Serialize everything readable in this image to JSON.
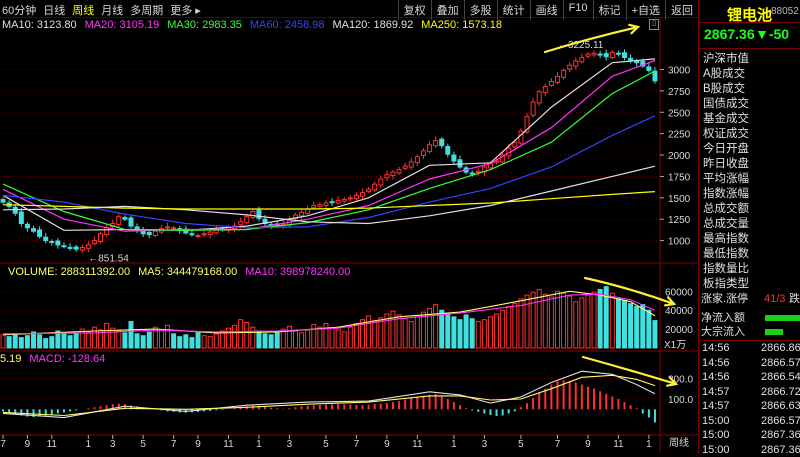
{
  "toolbar": {
    "periods": [
      "60分钟",
      "日线",
      "周线",
      "月线",
      "多周期",
      "更多 ▸"
    ],
    "active_period": 2,
    "tools": [
      "复权",
      "叠加",
      "多股",
      "统计",
      "画线",
      "F10",
      "标记",
      "+自选",
      "返回"
    ]
  },
  "ma_legend": [
    {
      "label": "MA10: 3123.80",
      "color": "#e0e0e0"
    },
    {
      "label": "MA20: 3105.19",
      "color": "#ff33ff"
    },
    {
      "label": "MA30: 2983.35",
      "color": "#33ff33"
    },
    {
      "label": "MA60: 2458.98",
      "color": "#3344ff"
    },
    {
      "label": "MA120: 1869.92",
      "color": "#e0e0e0"
    },
    {
      "label": "MA250: 1573.18",
      "color": "#ffff00"
    }
  ],
  "volume_legend": [
    {
      "label": "VOLUME: 288311392.00",
      "color": "#ffff66"
    },
    {
      "label": "MA5: 344479168.00",
      "color": "#ffff66"
    },
    {
      "label": "MA10: 398978240.00",
      "color": "#ff33ff"
    }
  ],
  "macd_legend": [
    {
      "label": "5.19",
      "color": "#ffff66"
    },
    {
      "label": "MACD: -128.64",
      "color": "#ff33ff"
    }
  ],
  "chart_data": [
    {
      "type": "line",
      "name": "price_candles",
      "ylim": [
        750,
        3450
      ],
      "yticks": [
        1000,
        1250,
        1500,
        1750,
        2000,
        2250,
        2500,
        2750,
        3000
      ],
      "annotations": [
        {
          "text": "851.54",
          "x": 13,
          "y": 851.54
        },
        {
          "text": "3225.11",
          "x": 96,
          "y": 3225.11
        }
      ],
      "x": [
        0,
        1,
        2,
        3,
        4,
        5,
        6,
        7,
        8,
        9,
        10,
        11,
        12,
        13,
        14,
        15,
        16,
        17,
        18,
        19,
        20,
        21,
        22,
        23,
        24,
        25,
        26,
        27,
        28,
        29,
        30,
        31,
        32,
        33,
        34,
        35,
        36,
        37,
        38,
        39,
        40,
        41,
        42,
        43,
        44,
        45,
        46,
        47,
        48,
        49,
        50,
        51,
        52,
        53,
        54,
        55,
        56,
        57,
        58,
        59,
        60,
        61,
        62,
        63,
        64,
        65,
        66,
        67,
        68,
        69,
        70,
        71,
        72,
        73,
        74,
        75,
        76,
        77,
        78,
        79,
        80,
        81,
        82,
        83,
        84,
        85,
        86,
        87,
        88,
        89,
        90,
        91,
        92,
        93,
        94,
        95,
        96,
        97,
        98,
        99,
        100,
        101,
        102,
        103,
        104,
        105,
        106,
        107
      ],
      "close": [
        1450,
        1400,
        1320,
        1200,
        1150,
        1110,
        1050,
        1000,
        980,
        950,
        930,
        910,
        900,
        920,
        950,
        1000,
        1080,
        1150,
        1200,
        1280,
        1250,
        1170,
        1120,
        1080,
        1070,
        1110,
        1140,
        1160,
        1150,
        1120,
        1090,
        1070,
        1060,
        1080,
        1100,
        1120,
        1130,
        1150,
        1170,
        1220,
        1280,
        1340,
        1260,
        1200,
        1180,
        1170,
        1190,
        1240,
        1300,
        1330,
        1370,
        1410,
        1420,
        1440,
        1450,
        1470,
        1480,
        1500,
        1530,
        1560,
        1600,
        1660,
        1720,
        1770,
        1800,
        1830,
        1870,
        1920,
        1980,
        2050,
        2120,
        2170,
        2110,
        2010,
        1930,
        1860,
        1800,
        1780,
        1810,
        1860,
        1900,
        1930,
        2000,
        2080,
        2150,
        2280,
        2450,
        2620,
        2740,
        2800,
        2860,
        2920,
        2990,
        3050,
        3100,
        3140,
        3180,
        3190,
        3170,
        3150,
        3200,
        3180,
        3140,
        3110,
        3080,
        3040,
        2990,
        2867
      ],
      "ma_series": [
        {
          "name": "MA10",
          "color": "#e0e0e0",
          "points": [
            [
              0,
              1530
            ],
            [
              10,
              1120
            ],
            [
              20,
              1130
            ],
            [
              30,
              1120
            ],
            [
              40,
              1170
            ],
            [
              50,
              1290
            ],
            [
              60,
              1500
            ],
            [
              70,
              1880
            ],
            [
              80,
              1910
            ],
            [
              90,
              2560
            ],
            [
              100,
              3080
            ],
            [
              107,
              3124
            ]
          ]
        },
        {
          "name": "MA20",
          "color": "#ff33ff",
          "points": [
            [
              0,
              1600
            ],
            [
              10,
              1250
            ],
            [
              20,
              1110
            ],
            [
              30,
              1130
            ],
            [
              40,
              1130
            ],
            [
              50,
              1250
            ],
            [
              60,
              1410
            ],
            [
              70,
              1720
            ],
            [
              80,
              1900
            ],
            [
              90,
              2320
            ],
            [
              100,
              2920
            ],
            [
              107,
              3105
            ]
          ]
        },
        {
          "name": "MA30",
          "color": "#33ff33",
          "points": [
            [
              0,
              1660
            ],
            [
              10,
              1340
            ],
            [
              20,
              1130
            ],
            [
              30,
              1120
            ],
            [
              40,
              1130
            ],
            [
              50,
              1210
            ],
            [
              60,
              1360
            ],
            [
              70,
              1610
            ],
            [
              80,
              1830
            ],
            [
              90,
              2150
            ],
            [
              100,
              2720
            ],
            [
              107,
              2983
            ]
          ]
        },
        {
          "name": "MA60",
          "color": "#3344ff",
          "points": [
            [
              0,
              1530
            ],
            [
              10,
              1450
            ],
            [
              20,
              1310
            ],
            [
              30,
              1200
            ],
            [
              40,
              1150
            ],
            [
              50,
              1160
            ],
            [
              60,
              1270
            ],
            [
              70,
              1450
            ],
            [
              80,
              1610
            ],
            [
              90,
              1860
            ],
            [
              100,
              2230
            ],
            [
              107,
              2459
            ]
          ]
        },
        {
          "name": "MA120",
          "color": "#e0e0e0",
          "points": [
            [
              0,
              1360
            ],
            [
              10,
              1370
            ],
            [
              20,
              1400
            ],
            [
              30,
              1360
            ],
            [
              40,
              1300
            ],
            [
              50,
              1220
            ],
            [
              60,
              1200
            ],
            [
              70,
              1290
            ],
            [
              80,
              1410
            ],
            [
              90,
              1580
            ],
            [
              100,
              1750
            ],
            [
              107,
              1870
            ]
          ]
        },
        {
          "name": "MA250",
          "color": "#ffff00",
          "points": [
            [
              0,
              1420
            ],
            [
              10,
              1400
            ],
            [
              20,
              1380
            ],
            [
              30,
              1370
            ],
            [
              40,
              1370
            ],
            [
              50,
              1370
            ],
            [
              60,
              1380
            ],
            [
              70,
              1410
            ],
            [
              80,
              1440
            ],
            [
              90,
              1490
            ],
            [
              100,
              1540
            ],
            [
              107,
              1573
            ]
          ]
        }
      ]
    },
    {
      "type": "bar",
      "name": "volume",
      "ylim": [
        0,
        72000
      ],
      "yticks": [
        20000,
        40000,
        60000
      ],
      "unit_label": "X1万",
      "values": [
        14000,
        12000,
        15000,
        11000,
        13000,
        17000,
        14000,
        10000,
        12000,
        18000,
        15000,
        13000,
        16000,
        20000,
        17000,
        22000,
        19000,
        26000,
        21000,
        18000,
        16000,
        28000,
        15000,
        13000,
        17000,
        22000,
        19000,
        24000,
        15000,
        12000,
        14000,
        11000,
        16000,
        13000,
        12000,
        15000,
        18000,
        21000,
        24000,
        30000,
        27000,
        22000,
        18000,
        15000,
        14000,
        16000,
        20000,
        23000,
        18000,
        16000,
        19000,
        25000,
        22000,
        26000,
        21000,
        19000,
        17000,
        22000,
        26000,
        30000,
        34000,
        29000,
        32000,
        36000,
        39000,
        35000,
        31000,
        28000,
        33000,
        38000,
        42000,
        46000,
        40000,
        37000,
        33000,
        30000,
        35000,
        31000,
        28000,
        30000,
        33000,
        36000,
        40000,
        44000,
        47000,
        52000,
        56000,
        59000,
        62000,
        57000,
        54000,
        60000,
        58000,
        55000,
        49000,
        53000,
        56000,
        59000,
        62000,
        65000,
        58000,
        52000,
        50000,
        47000,
        44000,
        46000,
        40000,
        29000
      ],
      "ma5": [
        [
          0,
          14000
        ],
        [
          15,
          18000
        ],
        [
          25,
          20000
        ],
        [
          35,
          16000
        ],
        [
          45,
          17000
        ],
        [
          55,
          22000
        ],
        [
          65,
          33000
        ],
        [
          75,
          38000
        ],
        [
          85,
          50000
        ],
        [
          93,
          60000
        ],
        [
          98,
          56000
        ],
        [
          103,
          49000
        ],
        [
          107,
          34000
        ]
      ],
      "ma10": [
        [
          0,
          15000
        ],
        [
          15,
          16000
        ],
        [
          25,
          19000
        ],
        [
          35,
          17000
        ],
        [
          45,
          18000
        ],
        [
          55,
          21000
        ],
        [
          65,
          31000
        ],
        [
          75,
          37000
        ],
        [
          85,
          45000
        ],
        [
          93,
          56000
        ],
        [
          98,
          57000
        ],
        [
          103,
          51000
        ],
        [
          107,
          40000
        ]
      ]
    },
    {
      "type": "bar",
      "name": "macd",
      "ylim": [
        -220,
        420
      ],
      "yticks": [
        100,
        300
      ],
      "values": [
        -20,
        -30,
        -45,
        -60,
        -70,
        -75,
        -70,
        -60,
        -50,
        -40,
        -30,
        -20,
        -10,
        0,
        10,
        20,
        30,
        40,
        50,
        55,
        50,
        40,
        30,
        20,
        10,
        0,
        -10,
        -20,
        -25,
        -30,
        -32,
        -30,
        -25,
        -20,
        -15,
        -10,
        -5,
        0,
        10,
        20,
        30,
        40,
        35,
        25,
        15,
        10,
        5,
        10,
        20,
        30,
        35,
        40,
        42,
        45,
        47,
        50,
        48,
        45,
        42,
        40,
        45,
        50,
        55,
        60,
        70,
        80,
        95,
        110,
        120,
        130,
        140,
        150,
        130,
        100,
        70,
        40,
        10,
        -10,
        -25,
        -40,
        -55,
        -65,
        -60,
        -40,
        -20,
        20,
        60,
        110,
        160,
        200,
        240,
        270,
        280,
        275,
        260,
        240,
        220,
        200,
        175,
        150,
        125,
        100,
        70,
        40,
        10,
        -40,
        -80,
        -128
      ],
      "dif": [
        [
          0,
          -40
        ],
        [
          10,
          -80
        ],
        [
          20,
          30
        ],
        [
          30,
          -20
        ],
        [
          40,
          40
        ],
        [
          50,
          70
        ],
        [
          60,
          80
        ],
        [
          70,
          170
        ],
        [
          75,
          140
        ],
        [
          80,
          60
        ],
        [
          85,
          120
        ],
        [
          90,
          260
        ],
        [
          95,
          370
        ],
        [
          100,
          340
        ],
        [
          104,
          240
        ],
        [
          107,
          150
        ]
      ],
      "dea": [
        [
          0,
          -30
        ],
        [
          10,
          -60
        ],
        [
          20,
          10
        ],
        [
          30,
          0
        ],
        [
          40,
          20
        ],
        [
          50,
          50
        ],
        [
          60,
          70
        ],
        [
          70,
          130
        ],
        [
          75,
          130
        ],
        [
          80,
          90
        ],
        [
          85,
          100
        ],
        [
          90,
          200
        ],
        [
          95,
          310
        ],
        [
          100,
          330
        ],
        [
          104,
          290
        ],
        [
          107,
          230
        ]
      ]
    }
  ],
  "x_labels": [
    {
      "x": 0,
      "t": "7"
    },
    {
      "x": 4,
      "t": "9"
    },
    {
      "x": 8,
      "t": "11"
    },
    {
      "x": 14,
      "t": "1"
    },
    {
      "x": 18,
      "t": "3"
    },
    {
      "x": 23,
      "t": "5"
    },
    {
      "x": 28,
      "t": "7"
    },
    {
      "x": 32,
      "t": "9"
    },
    {
      "x": 37,
      "t": "11"
    },
    {
      "x": 42,
      "t": "1"
    },
    {
      "x": 47,
      "t": "3"
    },
    {
      "x": 53,
      "t": "5"
    },
    {
      "x": 58,
      "t": "7"
    },
    {
      "x": 63,
      "t": "9"
    },
    {
      "x": 68,
      "t": "11"
    },
    {
      "x": 74,
      "t": "1"
    },
    {
      "x": 79,
      "t": "3"
    },
    {
      "x": 85,
      "t": "5"
    },
    {
      "x": 91,
      "t": "7"
    },
    {
      "x": 96,
      "t": "9"
    },
    {
      "x": 101,
      "t": "11"
    },
    {
      "x": 106,
      "t": "1"
    }
  ],
  "x_axis_tag": "周线",
  "side": {
    "title": "锂电池",
    "code": "88052",
    "price": "2867.36",
    "change": "▼-50",
    "menu": [
      "沪深市值",
      "A股成交",
      "B股成交",
      "国债成交",
      "基金成交",
      "权证成交",
      "今日开盘",
      "昨日收盘",
      "平均涨幅",
      "指数涨幅",
      "总成交额",
      "总成交量",
      "最高指数",
      "最低指数",
      "指数量比",
      "板指类型"
    ],
    "limit_label": "涨家.涨停",
    "limit_value": "41/3",
    "limit_suffix": "跌",
    "net_inflow": "净流入额",
    "big_inflow": "大宗流入",
    "ticks": [
      {
        "time": "14:56",
        "price": "2866.86"
      },
      {
        "time": "14:56",
        "price": "2866.57"
      },
      {
        "time": "14:56",
        "price": "2866.54"
      },
      {
        "time": "14:57",
        "price": "2866.72"
      },
      {
        "time": "14:57",
        "price": "2866.63"
      },
      {
        "time": "15:00",
        "price": "2866.57"
      },
      {
        "time": "15:00",
        "price": "2867.36"
      },
      {
        "time": "15:00",
        "price": "2867.36"
      }
    ]
  },
  "colors": {
    "up": "#ff3030",
    "down": "#40e0e0",
    "grid": "#600000",
    "axis": "#8a0000",
    "arrow": "#ffee33"
  }
}
